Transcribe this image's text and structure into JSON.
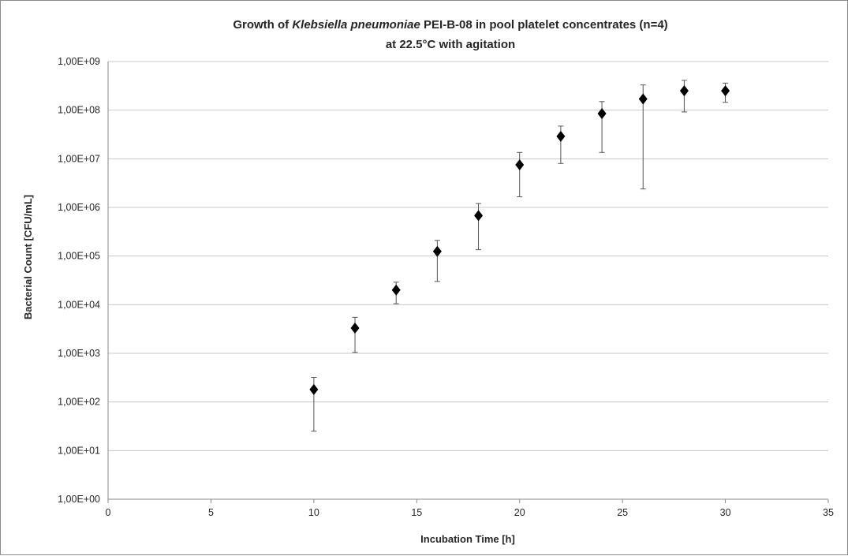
{
  "chart_data": {
    "type": "scatter",
    "title": {
      "line1_prefix": "Growth of ",
      "line1_italic": "Klebsiella pneumoniae",
      "line1_suffix": " PEI-B-08 in pool platelet concentrates (n=4)",
      "line2": "at 22.5°C with agitation"
    },
    "xlabel": "Incubation Time [h]",
    "ylabel": "Bacterial Count  [CFU/mL]",
    "xlim": [
      0,
      35
    ],
    "ylim": [
      1,
      1000000000
    ],
    "yscale": "log",
    "grid": "horizontal",
    "legend": "none",
    "marker": "diamond",
    "marker_color": "#000000",
    "x_ticks": [
      "0",
      "5",
      "10",
      "15",
      "20",
      "25",
      "30",
      "35"
    ],
    "x_tick_values": [
      0,
      5,
      10,
      15,
      20,
      25,
      30,
      35
    ],
    "y_ticks": [
      "1,00E+00",
      "1,00E+01",
      "1,00E+02",
      "1,00E+03",
      "1,00E+04",
      "1,00E+05",
      "1,00E+06",
      "1,00E+07",
      "1,00E+08",
      "1,00E+09"
    ],
    "y_tick_values": [
      1,
      10,
      100,
      1000,
      10000,
      100000,
      1000000,
      10000000,
      100000000,
      1000000000
    ],
    "points": [
      {
        "x": 10,
        "y": 180,
        "err_low": 25,
        "err_high": 320
      },
      {
        "x": 12,
        "y": 3300,
        "err_low": 1050,
        "err_high": 5500
      },
      {
        "x": 14,
        "y": 20000,
        "err_low": 10500,
        "err_high": 29000
      },
      {
        "x": 16,
        "y": 125000,
        "err_low": 30000,
        "err_high": 210000
      },
      {
        "x": 18,
        "y": 680000,
        "err_low": 135000,
        "err_high": 1200000
      },
      {
        "x": 20,
        "y": 7500000,
        "err_low": 1650000,
        "err_high": 13500000
      },
      {
        "x": 22,
        "y": 29000000,
        "err_low": 8000000,
        "err_high": 47000000
      },
      {
        "x": 24,
        "y": 85000000,
        "err_low": 13500000,
        "err_high": 150000000
      },
      {
        "x": 26,
        "y": 170000000,
        "err_low": 2400000,
        "err_high": 330000000
      },
      {
        "x": 28,
        "y": 250000000,
        "err_low": 92000000,
        "err_high": 410000000
      },
      {
        "x": 30,
        "y": 250000000,
        "err_low": 145000000,
        "err_high": 360000000
      }
    ]
  }
}
